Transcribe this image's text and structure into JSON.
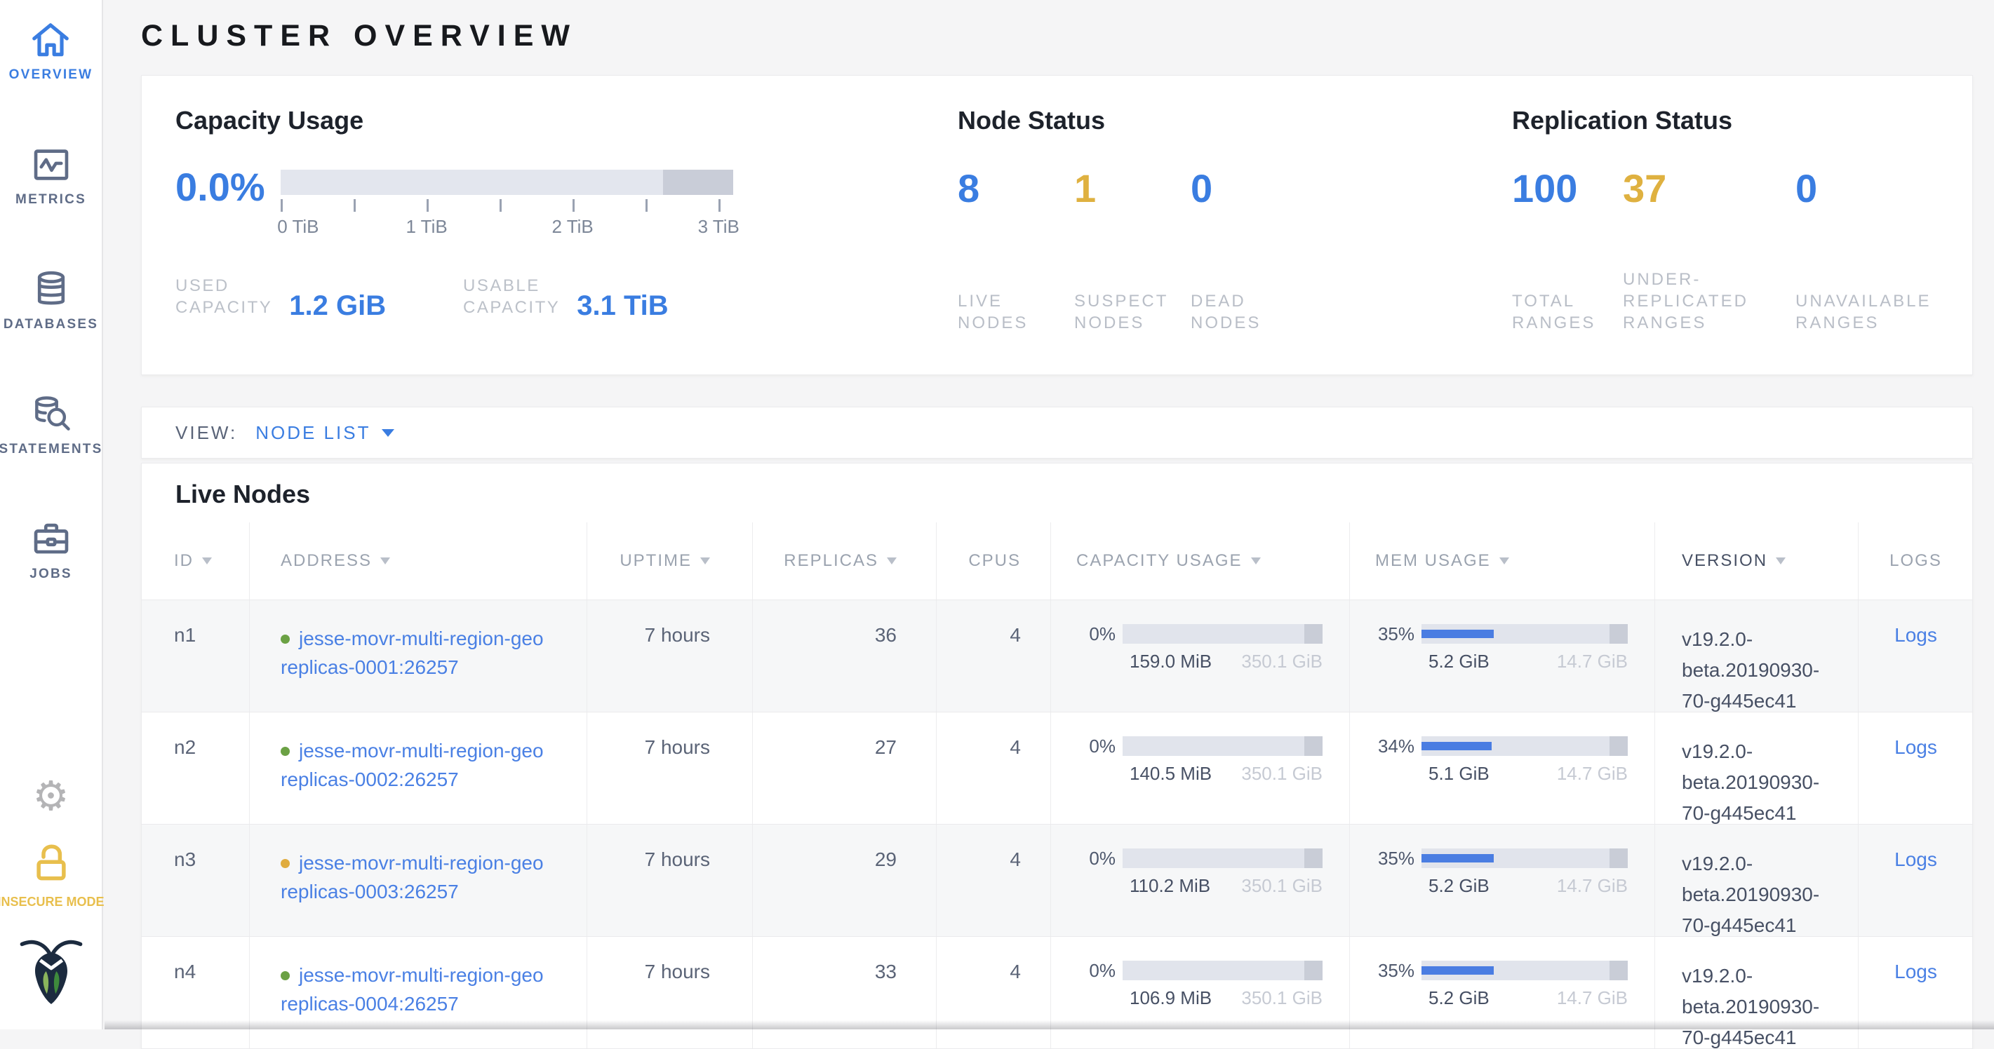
{
  "page": {
    "title": "CLUSTER OVERVIEW"
  },
  "sidebar": {
    "items": [
      {
        "label": "OVERVIEW",
        "active": true
      },
      {
        "label": "METRICS",
        "active": false
      },
      {
        "label": "DATABASES",
        "active": false
      },
      {
        "label": "STATEMENTS",
        "active": false
      },
      {
        "label": "JOBS",
        "active": false
      }
    ],
    "insecure_label": "INSECURE MODE"
  },
  "colors": {
    "accent_blue": "#3a7de1",
    "warning_yellow": "#dfb140",
    "link_blue": "#4a80e4",
    "live_green_dot": "#6ba144",
    "suspect_yellow_dot": "#e0ac3f"
  },
  "summary": {
    "capacity": {
      "title": "Capacity Usage",
      "percent": "0.0%",
      "axis_ticks": [
        "0 TiB",
        "1 TiB",
        "2 TiB",
        "3 TiB"
      ],
      "bar": {
        "used_pct": 0,
        "reserved_pct": 15.5
      },
      "stats": [
        {
          "label": "USED\nCAPACITY",
          "value": "1.2 GiB"
        },
        {
          "label": "USABLE\nCAPACITY",
          "value": "3.1 TiB"
        }
      ]
    },
    "node_status": {
      "title": "Node Status",
      "stats": [
        {
          "value": "8",
          "label": "LIVE\nNODES",
          "color": "#3a7de1"
        },
        {
          "value": "1",
          "label": "SUSPECT\nNODES",
          "color": "#dfb140"
        },
        {
          "value": "0",
          "label": "DEAD\nNODES",
          "color": "#3a7de1"
        }
      ]
    },
    "replication": {
      "title": "Replication Status",
      "stats": [
        {
          "value": "100",
          "label": "TOTAL\nRANGES",
          "color": "#3a7de1"
        },
        {
          "value": "37",
          "label": "UNDER-\nREPLICATED\nRANGES",
          "color": "#dfb140"
        },
        {
          "value": "0",
          "label": "UNAVAILABLE\nRANGES",
          "color": "#3a7de1"
        }
      ]
    }
  },
  "view_bar": {
    "label": "VIEW:",
    "selected": "NODE LIST"
  },
  "table": {
    "section_title": "Live Nodes",
    "columns": [
      {
        "label": "ID",
        "sortable": true
      },
      {
        "label": "ADDRESS",
        "sortable": true
      },
      {
        "label": "UPTIME",
        "sortable": true
      },
      {
        "label": "REPLICAS",
        "sortable": true
      },
      {
        "label": "CPUS",
        "sortable": false
      },
      {
        "label": "CAPACITY USAGE",
        "sortable": true
      },
      {
        "label": "MEM USAGE",
        "sortable": true
      },
      {
        "label": "VERSION",
        "sortable": true
      },
      {
        "label": "LOGS",
        "sortable": false
      }
    ],
    "rows": [
      {
        "id": "n1",
        "status_color": "#6ba144",
        "address_line1": "jesse-movr-multi-region-geo",
        "address_line2": "replicas-0001:26257",
        "uptime": "7 hours",
        "replicas": "36",
        "cpus": "4",
        "capacity": {
          "pct": "0%",
          "fill_pct": 0,
          "used": "159.0 MiB",
          "total": "350.1 GiB"
        },
        "memory": {
          "pct": "35%",
          "fill_pct": 35,
          "used": "5.2 GiB",
          "total": "14.7 GiB"
        },
        "version": "v19.2.0-beta.20190930-70-g445ec41",
        "logs_label": "Logs"
      },
      {
        "id": "n2",
        "status_color": "#6ba144",
        "address_line1": "jesse-movr-multi-region-geo",
        "address_line2": "replicas-0002:26257",
        "uptime": "7 hours",
        "replicas": "27",
        "cpus": "4",
        "capacity": {
          "pct": "0%",
          "fill_pct": 0,
          "used": "140.5 MiB",
          "total": "350.1 GiB"
        },
        "memory": {
          "pct": "34%",
          "fill_pct": 34,
          "used": "5.1 GiB",
          "total": "14.7 GiB"
        },
        "version": "v19.2.0-beta.20190930-70-g445ec41",
        "logs_label": "Logs"
      },
      {
        "id": "n3",
        "status_color": "#e0ac3f",
        "address_line1": "jesse-movr-multi-region-geo",
        "address_line2": "replicas-0003:26257",
        "uptime": "7 hours",
        "replicas": "29",
        "cpus": "4",
        "capacity": {
          "pct": "0%",
          "fill_pct": 0,
          "used": "110.2 MiB",
          "total": "350.1 GiB"
        },
        "memory": {
          "pct": "35%",
          "fill_pct": 35,
          "used": "5.2 GiB",
          "total": "14.7 GiB"
        },
        "version": "v19.2.0-beta.20190930-70-g445ec41",
        "logs_label": "Logs"
      },
      {
        "id": "n4",
        "status_color": "#6ba144",
        "address_line1": "jesse-movr-multi-region-geo",
        "address_line2": "replicas-0004:26257",
        "uptime": "7 hours",
        "replicas": "33",
        "cpus": "4",
        "capacity": {
          "pct": "0%",
          "fill_pct": 0,
          "used": "106.9 MiB",
          "total": "350.1 GiB"
        },
        "memory": {
          "pct": "35%",
          "fill_pct": 35,
          "used": "5.2 GiB",
          "total": "14.7 GiB"
        },
        "version": "v19.2.0-beta.20190930-70-g445ec41",
        "logs_label": "Logs"
      }
    ]
  }
}
